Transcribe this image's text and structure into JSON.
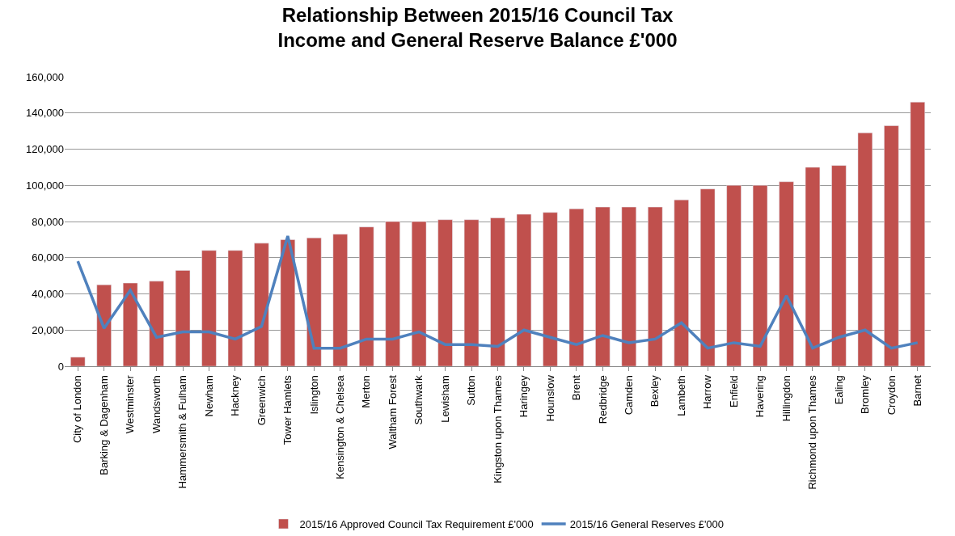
{
  "chart_data": {
    "type": "bar",
    "title": "Relationship Between 2015/16 Council Tax Income and General Reserve Balance £'000",
    "categories": [
      "City of London",
      "Barking & Dagenham",
      "Westminster",
      "Wandsworth",
      "Hammersmith & Fulham",
      "Newham",
      "Hackney",
      "Greenwich",
      "Tower Hamlets",
      "Islington",
      "Kensington & Chelsea",
      "Merton",
      "Waltham Forest",
      "Southwark",
      "Lewisham",
      "Sutton",
      "Kingston upon Thames",
      "Haringey",
      "Hounslow",
      "Brent",
      "Redbridge",
      "Camden",
      "Bexley",
      "Lambeth",
      "Harrow",
      "Enfield",
      "Havering",
      "Hillingdon",
      "Richmond upon Thames",
      "Ealing",
      "Bromley",
      "Croydon",
      "Barnet"
    ],
    "series": [
      {
        "name": "2015/16 Approved Council Tax Requirement £'000",
        "color": "#c0504d",
        "values": [
          5000,
          45000,
          46000,
          47000,
          53000,
          64000,
          64000,
          68000,
          70000,
          71000,
          73000,
          77000,
          80000,
          80000,
          81000,
          81000,
          82000,
          84000,
          85000,
          87000,
          88000,
          88000,
          88000,
          92000,
          98000,
          100000,
          100000,
          102000,
          110000,
          111000,
          129000,
          133000,
          146000
        ]
      },
      {
        "name": "2015/16 General Reserves £'000",
        "type": "line",
        "color": "#4f81bd",
        "values": [
          58000,
          21000,
          42000,
          16000,
          19000,
          19000,
          15000,
          22000,
          72000,
          10000,
          10000,
          15000,
          15000,
          19000,
          12000,
          12000,
          11000,
          20000,
          16000,
          12000,
          17000,
          13000,
          15000,
          24000,
          10000,
          13000,
          11000,
          39000,
          10000,
          16000,
          20000,
          10000,
          13000
        ]
      }
    ],
    "ylim": [
      0,
      160000
    ],
    "yticks": [
      {
        "value": 0,
        "label": "0"
      },
      {
        "value": 20000,
        "label": "20,000"
      },
      {
        "value": 40000,
        "label": "40,000"
      },
      {
        "value": 60000,
        "label": "60,000"
      },
      {
        "value": 80000,
        "label": "80,000"
      },
      {
        "value": 100000,
        "label": "100,000"
      },
      {
        "value": 120000,
        "label": "120,000"
      },
      {
        "value": 140000,
        "label": "140,000"
      },
      {
        "value": 160000,
        "label": "160,000"
      }
    ],
    "grid": "y",
    "legend": "bottom",
    "marker": "none",
    "line_style": "solid"
  }
}
